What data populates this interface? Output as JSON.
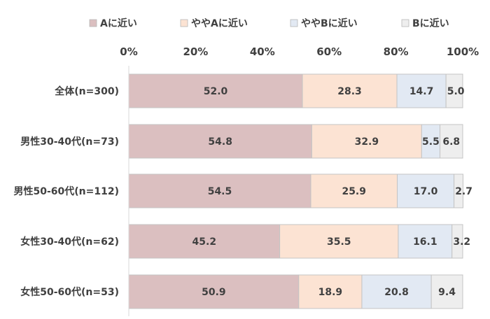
{
  "chart_data": {
    "type": "bar",
    "orientation": "horizontal",
    "stacked": "percent",
    "title": "",
    "xlim": [
      0,
      100
    ],
    "x_ticks": [
      "0%",
      "20%",
      "40%",
      "60%",
      "80%",
      "100%"
    ],
    "legend_position": "top",
    "categories": [
      "全体(n=300)",
      "男性30-40代(n=73)",
      "男性50-60代(n=112)",
      "女性30-40代(n=62)",
      "女性50-60代(n=53)"
    ],
    "series": [
      {
        "name": "Aに近い",
        "color": "#dbbfc0",
        "values": [
          52.0,
          54.8,
          54.5,
          45.2,
          50.9
        ],
        "labels": [
          "52.0",
          "54.8",
          "54.5",
          "45.2",
          "50.9"
        ]
      },
      {
        "name": "ややAに近い",
        "color": "#fce3d3",
        "values": [
          28.3,
          32.9,
          25.9,
          35.5,
          18.9
        ],
        "labels": [
          "28.3",
          "32.9",
          "25.9",
          "35.5",
          "18.9"
        ]
      },
      {
        "name": "ややBに近い",
        "color": "#e2e9f3",
        "values": [
          14.7,
          5.5,
          17.0,
          16.1,
          20.8
        ],
        "labels": [
          "14.7",
          "5.5",
          "17.0",
          "16.1",
          "20.8"
        ]
      },
      {
        "name": "Bに近い",
        "color": "#eeeeee",
        "values": [
          5.0,
          6.8,
          2.7,
          3.2,
          9.4
        ],
        "labels": [
          "5.0",
          "6.8",
          "2.7",
          "3.2",
          "9.4"
        ]
      }
    ]
  }
}
